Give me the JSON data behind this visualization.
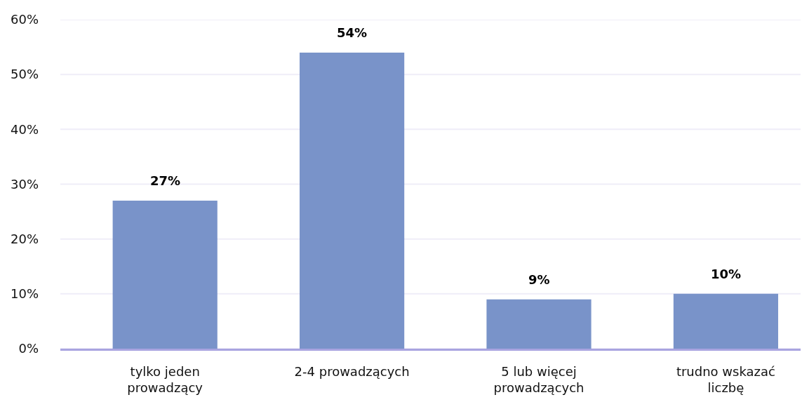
{
  "chart_data": {
    "type": "bar",
    "categories": [
      "tylko jeden prowadzący",
      "2-4 prowadzących",
      "5 lub więcej prowadzących",
      "trudno wskazać liczbę"
    ],
    "values": [
      27,
      54,
      9,
      10
    ],
    "color": "#7993c9",
    "value_labels": [
      "27%",
      "54%",
      "9%",
      "10%"
    ],
    "ylim": [
      0,
      60
    ],
    "yticks": [
      {
        "value": 0,
        "label": "0%"
      },
      {
        "value": 10,
        "label": "10%"
      },
      {
        "value": 20,
        "label": "20%"
      },
      {
        "value": 30,
        "label": "30%"
      },
      {
        "value": 40,
        "label": "40%"
      },
      {
        "value": 50,
        "label": "50%"
      },
      {
        "value": 60,
        "label": "60%"
      }
    ],
    "grid": "y"
  }
}
